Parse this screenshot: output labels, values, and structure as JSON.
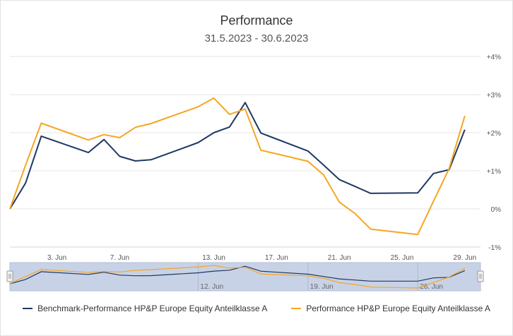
{
  "chart_data": {
    "type": "line",
    "title": "Performance",
    "subtitle": "31.5.2023 - 30.6.2023",
    "y_axis": {
      "side": "right",
      "min": -1,
      "max": 4,
      "ticks": [
        -1,
        0,
        1,
        2,
        3,
        4
      ],
      "tick_labels": [
        "-1%",
        "0%",
        "+1%",
        "+2%",
        "+3%",
        "+4%"
      ],
      "grid": true
    },
    "x_axis": {
      "min": "2023-05-31",
      "max": "2023-06-30",
      "ticks": [
        "2023-06-03",
        "2023-06-07",
        "2023-06-13",
        "2023-06-17",
        "2023-06-21",
        "2023-06-25",
        "2023-06-29"
      ],
      "tick_labels": [
        "3. Jun",
        "7. Jun",
        "13. Jun",
        "17. Jun",
        "21. Jun",
        "25. Jun",
        "29. Jun"
      ]
    },
    "x": [
      "2023-05-31",
      "2023-06-01",
      "2023-06-02",
      "2023-06-05",
      "2023-06-06",
      "2023-06-07",
      "2023-06-08",
      "2023-06-09",
      "2023-06-12",
      "2023-06-13",
      "2023-06-14",
      "2023-06-15",
      "2023-06-16",
      "2023-06-19",
      "2023-06-20",
      "2023-06-21",
      "2023-06-22",
      "2023-06-23",
      "2023-06-26",
      "2023-06-27",
      "2023-06-28",
      "2023-06-29",
      "2023-06-30"
    ],
    "series": [
      {
        "name": "Benchmark-Performance HP&P Europe Equity Anteilklasse A",
        "color": "#1f3864",
        "values": [
          0.0,
          0.68,
          1.91,
          1.48,
          1.82,
          1.38,
          1.26,
          1.29,
          1.74,
          2.0,
          2.15,
          2.79,
          1.99,
          1.52,
          1.15,
          0.77,
          0.59,
          0.41,
          0.42,
          0.93,
          1.03,
          2.08,
          null
        ]
      },
      {
        "name": "Performance HP&P Europe Equity Anteilklasse A",
        "color": "#f5a623",
        "values": [
          0.0,
          1.15,
          2.25,
          1.81,
          1.95,
          1.87,
          2.14,
          2.24,
          2.68,
          2.91,
          2.48,
          2.62,
          1.54,
          1.25,
          0.89,
          0.18,
          -0.12,
          -0.53,
          -0.67,
          0.2,
          1.06,
          2.44,
          null
        ]
      }
    ],
    "navigator": {
      "labels": [
        "12. Jun",
        "19. Jun",
        "26. Jun"
      ]
    },
    "legend": {
      "placement": "bottom"
    }
  }
}
